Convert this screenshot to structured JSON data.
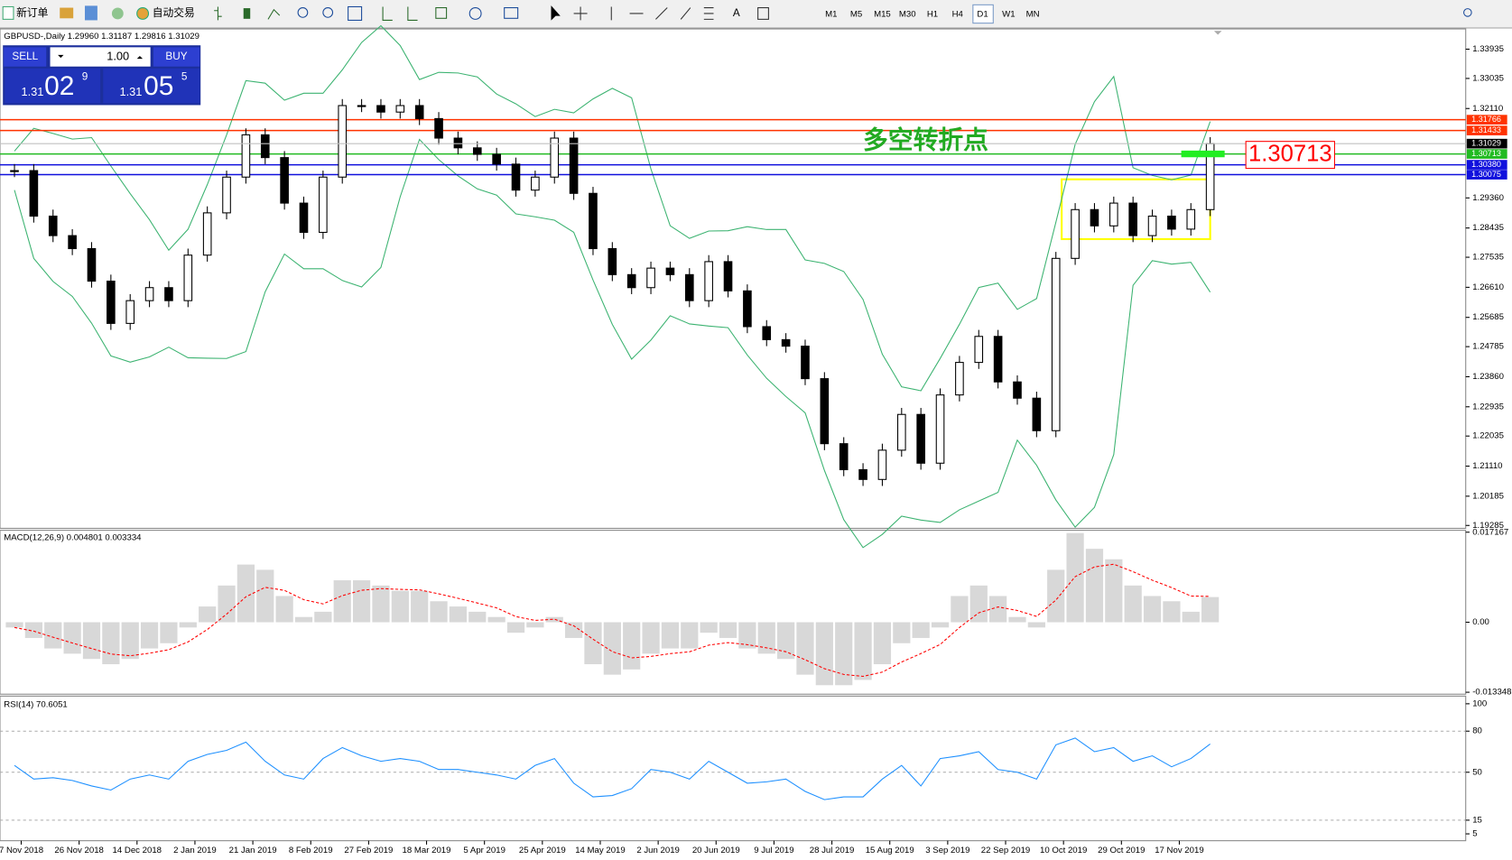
{
  "toolbar": {
    "new_order": "新订单",
    "auto_trading": "自动交易",
    "timeframes": [
      "M1",
      "M5",
      "M15",
      "M30",
      "H1",
      "H4",
      "D1",
      "W1",
      "MN"
    ]
  },
  "panel": {
    "sell": "SELL",
    "buy": "BUY",
    "lot": "1.00",
    "sell_price": [
      "1.31",
      "02",
      "9"
    ],
    "buy_price": [
      "1.31",
      "05",
      "5"
    ]
  },
  "chart": {
    "header": "GBPUSD-,Daily  1.29960 1.31187 1.29816 1.31029",
    "ylim": [
      1.19196,
      1.34558
    ],
    "price_ticks": [
      1.33935,
      1.33035,
      {
        "value": 1.3211,
        "label": "1.32110"
      },
      {
        "value": 1.2936,
        "label": "1.29360"
      },
      1.28435,
      1.27535,
      {
        "value": 1.2661,
        "label": "1.26610"
      },
      1.25685,
      1.24785,
      {
        "value": 1.2386,
        "label": "1.23860"
      },
      1.22935,
      1.22035,
      {
        "value": 1.2111,
        "label": "1.21110"
      },
      1.20185,
      1.19285
    ],
    "levels": [
      {
        "value": 1.31766,
        "label": "1.31766",
        "color": "#ff3300"
      },
      {
        "value": 1.31433,
        "label": "1.31433",
        "color": "#ff3300"
      },
      {
        "value": 1.30713,
        "label": "1.30713",
        "color": "#22bb22"
      },
      {
        "value": 1.3038,
        "label": "1.30380",
        "color": "#1010dd"
      },
      {
        "value": 1.30075,
        "label": "1.30075",
        "color": "#1010dd"
      }
    ],
    "current_price": {
      "value": 1.31029,
      "label": "1.31029"
    },
    "annotation": "多空转折点",
    "callout": {
      "value": 1.30713,
      "label": "1.30713"
    },
    "dates": [
      "7 Nov 2018",
      "26 Nov 2018",
      "14 Dec 2018",
      "2 Jan 2019",
      "21 Jan 2019",
      "8 Feb 2019",
      "27 Feb 2019",
      "18 Mar 2019",
      "5 Apr 2019",
      "25 Apr 2019",
      "14 May 2019",
      "2 Jun 2019",
      "20 Jun 2019",
      "9 Jul 2019",
      "28 Jul 2019",
      "15 Aug 2019",
      "3 Sep 2019",
      "22 Sep 2019",
      "10 Oct 2019",
      "29 Oct 2019",
      "17 Nov 2019"
    ],
    "closes": [
      1.302,
      1.288,
      1.282,
      1.278,
      1.268,
      1.255,
      1.262,
      1.266,
      1.262,
      1.276,
      1.289,
      1.3,
      1.313,
      1.306,
      1.292,
      1.283,
      1.3,
      1.322,
      1.322,
      1.32,
      1.322,
      1.318,
      1.312,
      1.309,
      1.307,
      1.304,
      1.296,
      1.3,
      1.312,
      1.295,
      1.278,
      1.27,
      1.266,
      1.272,
      1.27,
      1.262,
      1.274,
      1.265,
      1.254,
      1.25,
      1.248,
      1.238,
      1.218,
      1.21,
      1.207,
      1.216,
      1.227,
      1.212,
      1.233,
      1.243,
      1.251,
      1.237,
      1.232,
      1.222,
      1.275,
      1.29,
      1.285,
      1.292,
      1.282,
      1.288,
      1.284,
      1.29,
      1.31029
    ]
  },
  "macd": {
    "label": "MACD(12,26,9) 0.004801 0.003334",
    "ylim": [
      -0.013348,
      0.017167
    ],
    "ticks": [
      0.017167,
      {
        "value": 0,
        "label": "0.00"
      },
      -0.013348
    ],
    "values": [
      -0.001,
      -0.003,
      -0.005,
      -0.006,
      -0.007,
      -0.008,
      -0.007,
      -0.005,
      -0.004,
      -0.001,
      0.003,
      0.007,
      0.011,
      0.01,
      0.005,
      0.001,
      0.002,
      0.008,
      0.008,
      0.007,
      0.006,
      0.006,
      0.004,
      0.003,
      0.002,
      0.001,
      -0.002,
      -0.001,
      0.001,
      -0.003,
      -0.008,
      -0.01,
      -0.009,
      -0.006,
      -0.005,
      -0.005,
      -0.002,
      -0.003,
      -0.005,
      -0.006,
      -0.007,
      -0.01,
      -0.012,
      -0.012,
      -0.011,
      -0.008,
      -0.004,
      -0.003,
      -0.001,
      0.005,
      0.007,
      0.005,
      0.001,
      -0.001,
      0.01,
      0.017,
      0.014,
      0.012,
      0.007,
      0.005,
      0.004,
      0.002,
      0.004801
    ]
  },
  "rsi": {
    "label": "RSI(14) 70.6051",
    "ylim": [
      0,
      105.6
    ],
    "ticks": [
      100,
      80,
      50,
      15,
      5
    ],
    "values": [
      55,
      45,
      46,
      44,
      40,
      37,
      45,
      48,
      45,
      58,
      63,
      66,
      72,
      58,
      48,
      45,
      60,
      68,
      62,
      58,
      60,
      58,
      52,
      52,
      50,
      48,
      45,
      55,
      60,
      42,
      32,
      33,
      38,
      52,
      50,
      45,
      58,
      50,
      42,
      43,
      45,
      36,
      30,
      32,
      32,
      45,
      55,
      40,
      60,
      62,
      65,
      52,
      50,
      45,
      70,
      75,
      65,
      68,
      58,
      62,
      54,
      60,
      70.6051
    ]
  }
}
